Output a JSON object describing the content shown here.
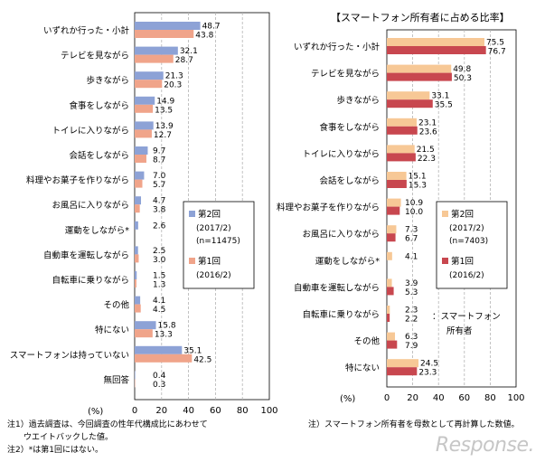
{
  "colors": {
    "round2": "#8da2d6",
    "round1": "#f0a48a",
    "owner2": "#f7c896",
    "owner1": "#c8474f",
    "grid": "#b4b4b4",
    "watermark": "#c6c6c6"
  },
  "right_title": "【スマートフォン所有者に占める比率】",
  "notes_left": [
    "注1）過去調査は、今回調査の性年代構成比にあわせて",
    "ウエイトバックした値。",
    "注2）*は第1回にはない。"
  ],
  "note_right": "注）スマートフォン所有者を母数として再計算した数値。",
  "watermark": "Response.",
  "owner_label": [
    "：スマートフォン",
    "所有者"
  ],
  "chart_data": [
    {
      "type": "bar",
      "orientation": "horizontal",
      "unit_label": "(%)",
      "xlim": [
        0,
        100
      ],
      "ticks": [
        "0",
        "20",
        "40",
        "60",
        "80",
        "100"
      ],
      "categories": [
        "いずれか行った・小計",
        "テレビを見ながら",
        "歩きながら",
        "食事をしながら",
        "トイレに入りながら",
        "会話をしながら",
        "料理やお菓子を作りながら",
        "お風呂に入りながら",
        "運動をしながら*",
        "自動車を運転しながら",
        "自転車に乗りながら",
        "その他",
        "特にない",
        "スマートフォンは持っていない",
        "無回答"
      ],
      "series": [
        {
          "name": "第2回",
          "name_sub": [
            "(2017/2)",
            "(n=11475)"
          ],
          "values": [
            48.7,
            32.1,
            21.3,
            14.9,
            13.9,
            9.7,
            7.0,
            4.7,
            2.6,
            2.5,
            1.5,
            4.1,
            15.8,
            35.1,
            0.4
          ]
        },
        {
          "name": "第1回",
          "name_sub": [
            "(2016/2)"
          ],
          "values": [
            43.8,
            28.7,
            20.3,
            13.5,
            12.7,
            8.7,
            5.7,
            3.8,
            null,
            3.0,
            1.3,
            4.5,
            13.3,
            42.5,
            0.3
          ]
        }
      ],
      "labels_r2": [
        "48.7",
        "32.1",
        "21.3",
        "14.9",
        "13.9",
        "9.7",
        "7.0",
        "4.7",
        "2.6",
        "2.5",
        "1.5",
        "4.1",
        "15.8",
        "35.1",
        "0.4"
      ],
      "labels_r1": [
        "43.8",
        "28.7",
        "20.3",
        "13.5",
        "12.7",
        "8.7",
        "5.7",
        "3.8",
        "",
        "3.0",
        "1.3",
        "4.5",
        "13.3",
        "42.5",
        "0.3"
      ]
    },
    {
      "type": "bar",
      "orientation": "horizontal",
      "title": "【スマートフォン所有者に占める比率】",
      "unit_label": "(%)",
      "xlim": [
        0,
        100
      ],
      "ticks": [
        "0",
        "20",
        "40",
        "60",
        "80",
        "100"
      ],
      "categories": [
        "いずれか行った・小計",
        "テレビを見ながら",
        "歩きながら",
        "食事をしながら",
        "トイレに入りながら",
        "会話をしながら",
        "料理やお菓子を作りながら",
        "お風呂に入りながら",
        "運動をしながら*",
        "自動車を運転しながら",
        "自転車に乗りながら",
        "その他",
        "特にない"
      ],
      "series": [
        {
          "name": "第2回",
          "name_sub": [
            "(2017/2)",
            "(n=7403)"
          ],
          "values": [
            75.5,
            49.8,
            33.1,
            23.1,
            21.5,
            15.1,
            10.9,
            7.3,
            4.1,
            3.9,
            2.3,
            6.3,
            24.5
          ]
        },
        {
          "name": "第1回",
          "name_sub": [
            "(2016/2)"
          ],
          "values": [
            76.7,
            50.3,
            35.5,
            23.6,
            22.3,
            15.3,
            10.0,
            6.7,
            null,
            5.3,
            2.2,
            7.9,
            23.3
          ]
        }
      ],
      "labels_r2": [
        "75.5",
        "49.8",
        "33.1",
        "23.1",
        "21.5",
        "15.1",
        "10.9",
        "7.3",
        "4.1",
        "3.9",
        "2.3",
        "6.3",
        "24.5"
      ],
      "labels_r1": [
        "76.7",
        "50.3",
        "35.5",
        "23.6",
        "22.3",
        "15.3",
        "10.0",
        "6.7",
        "",
        "5.3",
        "2.2",
        "7.9",
        "23.3"
      ]
    }
  ]
}
